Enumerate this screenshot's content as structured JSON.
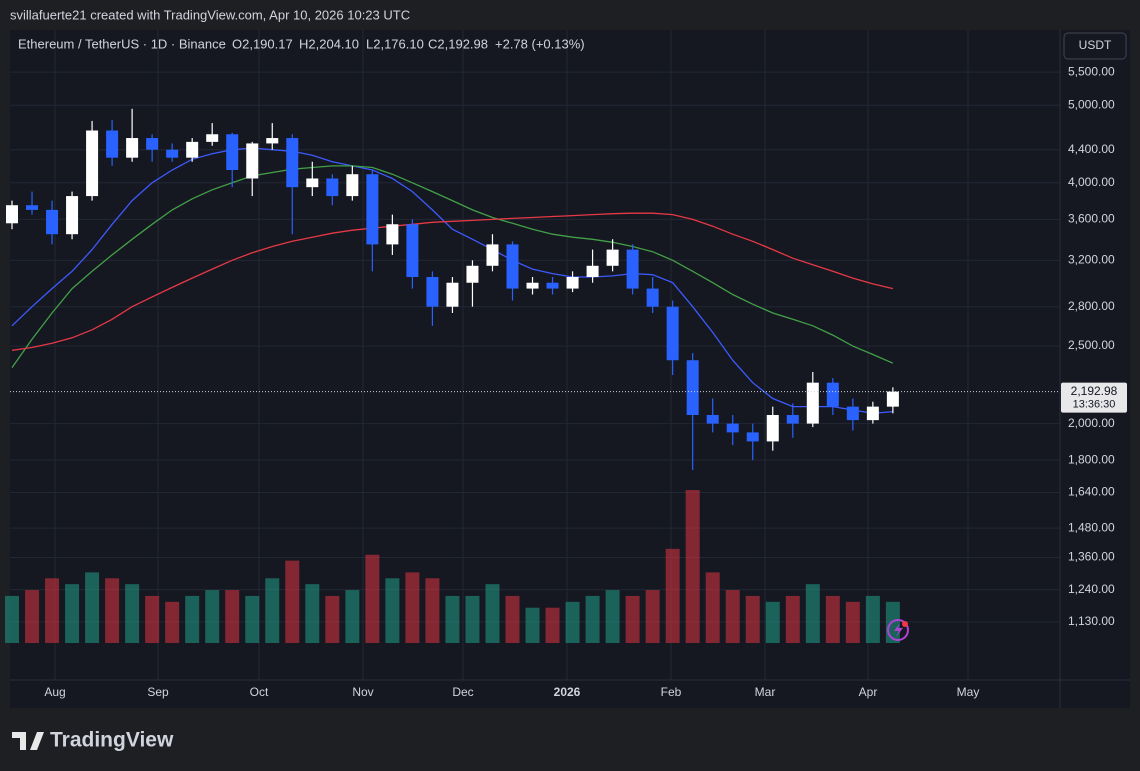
{
  "header": {
    "credit": "svillafuerte21 created with TradingView.com, Apr 10, 2026 10:23 UTC",
    "symbol": "Ethereum / TetherUS · 1D · Binance",
    "ohlc": [
      "O2,190.17",
      "H2,204.10",
      "L2,176.10",
      "C2,192.98"
    ],
    "change": "+2.78 (+0.13%)"
  },
  "chart_data": {
    "type": "candlestick",
    "currency": "USDT",
    "log_scale": true,
    "grid": true,
    "up_color": "#ffffff",
    "down_color": "#2962ff",
    "x_labels": [
      "Aug",
      "Sep",
      "Oct",
      "Nov",
      "Dec",
      "2026",
      "Feb",
      "Mar",
      "Apr",
      "May"
    ],
    "open": [
      3560,
      3750,
      3700,
      3450,
      3850,
      4650,
      4300,
      4550,
      4400,
      4300,
      4500,
      4600,
      4050,
      4480,
      4550,
      3950,
      4050,
      3850,
      4100,
      3350,
      3550,
      3050,
      2800,
      3000,
      3150,
      3350,
      2950,
      3000,
      2950,
      3050,
      3150,
      3300,
      2950,
      2800,
      2400,
      2050,
      2000,
      1950,
      1900,
      2050,
      2000,
      2250,
      2100,
      2020,
      2100
    ],
    "high": [
      3800,
      3900,
      3800,
      3900,
      4780,
      4790,
      4950,
      4600,
      4480,
      4550,
      4750,
      4620,
      4500,
      4750,
      4600,
      4250,
      4100,
      4200,
      4150,
      3650,
      3600,
      3100,
      3050,
      3200,
      3450,
      3380,
      3050,
      3050,
      3100,
      3300,
      3400,
      3350,
      3050,
      2850,
      2450,
      2150,
      2050,
      2000,
      2100,
      2120,
      2320,
      2280,
      2150,
      2130,
      2220
    ],
    "low": [
      3500,
      3650,
      3350,
      3400,
      3800,
      4200,
      4250,
      4250,
      4250,
      4250,
      4450,
      3950,
      3850,
      4400,
      3450,
      3850,
      3750,
      3800,
      3100,
      3250,
      2950,
      2650,
      2750,
      2800,
      3100,
      2850,
      2900,
      2900,
      2920,
      3000,
      3100,
      2900,
      2750,
      2300,
      1750,
      1950,
      1880,
      1800,
      1850,
      1920,
      1980,
      2050,
      1960,
      2000,
      2060
    ],
    "close": [
      3750,
      3700,
      3450,
      3850,
      4650,
      4300,
      4550,
      4400,
      4300,
      4500,
      4600,
      4150,
      4480,
      4550,
      3950,
      4050,
      3850,
      4100,
      3350,
      3550,
      3050,
      2800,
      3000,
      3150,
      3350,
      2950,
      3000,
      2950,
      3050,
      3150,
      3300,
      2950,
      2800,
      2400,
      2050,
      2000,
      1950,
      1900,
      2050,
      2000,
      2250,
      2100,
      2020,
      2100,
      2192.98
    ],
    "moving_averages": [
      {
        "color": "#3d5afe",
        "values": [
          2650,
          2800,
          2950,
          3100,
          3300,
          3550,
          3800,
          4000,
          4150,
          4280,
          4350,
          4400,
          4420,
          4400,
          4380,
          4330,
          4250,
          4200,
          4150,
          4050,
          3900,
          3700,
          3500,
          3400,
          3300,
          3200,
          3120,
          3080,
          3050,
          3050,
          3060,
          3080,
          3070,
          3000,
          2800,
          2600,
          2400,
          2250,
          2150,
          2100,
          2100,
          2100,
          2080,
          2060,
          2070
        ]
      },
      {
        "color": "#43a047",
        "values": [
          2350,
          2550,
          2750,
          2950,
          3100,
          3250,
          3400,
          3550,
          3700,
          3820,
          3920,
          4000,
          4080,
          4120,
          4160,
          4180,
          4200,
          4200,
          4180,
          4100,
          4000,
          3900,
          3800,
          3700,
          3620,
          3560,
          3500,
          3450,
          3420,
          3400,
          3370,
          3330,
          3280,
          3200,
          3100,
          3000,
          2900,
          2820,
          2750,
          2700,
          2650,
          2580,
          2500,
          2440,
          2380
        ]
      },
      {
        "color": "#e53945",
        "values": [
          2470,
          2490,
          2520,
          2560,
          2620,
          2700,
          2800,
          2880,
          2960,
          3040,
          3120,
          3200,
          3270,
          3330,
          3380,
          3420,
          3460,
          3490,
          3510,
          3530,
          3550,
          3570,
          3580,
          3590,
          3600,
          3610,
          3620,
          3630,
          3640,
          3650,
          3660,
          3665,
          3665,
          3650,
          3600,
          3530,
          3450,
          3380,
          3300,
          3220,
          3160,
          3100,
          3040,
          2990,
          2950
        ]
      }
    ],
    "volume": {
      "up_color": "#22ab94",
      "down_color": "#f23645",
      "values": [
        40,
        45,
        55,
        50,
        60,
        55,
        50,
        40,
        35,
        40,
        45,
        45,
        40,
        55,
        70,
        50,
        40,
        45,
        75,
        55,
        60,
        55,
        40,
        40,
        50,
        40,
        30,
        30,
        35,
        40,
        45,
        40,
        45,
        80,
        130,
        60,
        45,
        40,
        35,
        40,
        50,
        40,
        35,
        40,
        35
      ]
    },
    "ylim": [
      956,
      6210
    ],
    "yticks": [
      {
        "value": 5500,
        "label": "5,500.00"
      },
      {
        "value": 5000,
        "label": "5,000.00"
      },
      {
        "value": 4400,
        "label": "4,400.00"
      },
      {
        "value": 4000,
        "label": "4,000.00"
      },
      {
        "value": 3600,
        "label": "3,600.00"
      },
      {
        "value": 3200,
        "label": "3,200.00"
      },
      {
        "value": 2800,
        "label": "2,800.00"
      },
      {
        "value": 2500,
        "label": "2,500.00"
      },
      {
        "value": 2000,
        "label": "2,000.00"
      },
      {
        "value": 1800,
        "label": "1,800.00"
      },
      {
        "value": 1640,
        "label": "1,640.00"
      },
      {
        "value": 1480,
        "label": "1,480.00"
      },
      {
        "value": 1360,
        "label": "1,360.00"
      },
      {
        "value": 1240,
        "label": "1,240.00"
      },
      {
        "value": 1130,
        "label": "1,130.00"
      }
    ],
    "last_price": {
      "value": 2192.98,
      "label": "2,192.98"
    },
    "countdown": "13:36:30"
  },
  "footer": {
    "logo": "TradingView"
  }
}
